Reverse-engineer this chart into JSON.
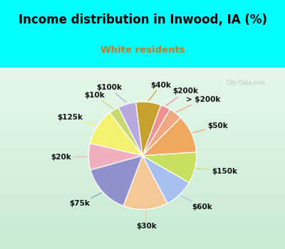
{
  "title": "Income distribution in Inwood, IA (%)",
  "subtitle": "White residents",
  "title_color": "#000000",
  "subtitle_color": "#cc7722",
  "background_top": "#00ffff",
  "background_chart_tl": "#d8f0e0",
  "background_chart_br": "#e8f8f0",
  "labels": [
    "$100k",
    "$10k",
    "$125k",
    "$20k",
    "$75k",
    "$30k",
    "$60k",
    "$150k",
    "$50k",
    "> $200k",
    "$200k",
    "$40k"
  ],
  "values": [
    5.5,
    3.0,
    11.0,
    8.0,
    15.0,
    13.5,
    9.0,
    9.5,
    11.5,
    4.0,
    3.0,
    7.5
  ],
  "colors": [
    "#b8a8e0",
    "#c8d870",
    "#f5f070",
    "#f0b0c0",
    "#9090cc",
    "#f5c898",
    "#a8c0f0",
    "#c8e060",
    "#f0a860",
    "#f0a880",
    "#f09090",
    "#c8a030"
  ],
  "startangle": 97,
  "label_fontsize": 7.5
}
